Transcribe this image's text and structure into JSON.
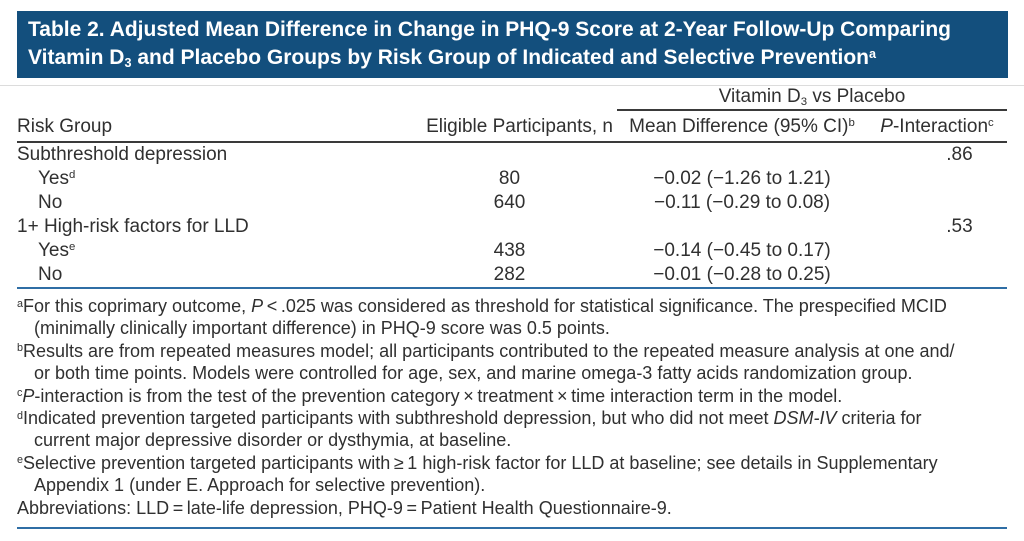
{
  "banner": {
    "line1": [
      {
        "t": "Table 2. Adjusted Mean Difference in Change in PHQ-9 Score at 2-Year Follow-Up Comparing"
      }
    ],
    "line2": [
      {
        "t": "Vitamin D"
      },
      {
        "t": "3",
        "sub": true
      },
      {
        "t": " and Placebo Groups by Risk Group of Indicated and Selective Prevention"
      },
      {
        "t": "a",
        "sup": true
      }
    ]
  },
  "table": {
    "span_header": [
      {
        "t": "Vitamin D"
      },
      {
        "t": "3",
        "sub": true
      },
      {
        "t": " vs Placebo"
      }
    ],
    "columns": {
      "risk_group": "Risk Group",
      "eligible": "Eligible Participants, n",
      "mean_diff": [
        {
          "t": "Mean Difference (95% CI)"
        },
        {
          "t": "b",
          "sup": true
        }
      ],
      "p_interaction": [
        {
          "t": "P",
          "i": true
        },
        {
          "t": "-Interaction"
        },
        {
          "t": "c",
          "sup": true
        }
      ]
    },
    "rows": [
      {
        "label": "Subthreshold depression",
        "indent": false,
        "sup": "",
        "n": "",
        "mean_diff": "",
        "p": ".86"
      },
      {
        "label": "Yes",
        "indent": true,
        "sup": "d",
        "n": "80",
        "mean_diff": "−0.02 (−1.26 to 1.21)",
        "p": ""
      },
      {
        "label": "No",
        "indent": true,
        "sup": "",
        "n": "640",
        "mean_diff": "−0.11 (−0.29 to 0.08)",
        "p": ""
      },
      {
        "label": "1+ High-risk factors for LLD",
        "indent": false,
        "sup": "",
        "n": "",
        "mean_diff": "",
        "p": ".53"
      },
      {
        "label": "Yes",
        "indent": true,
        "sup": "e",
        "n": "438",
        "mean_diff": "−0.14 (−0.45 to 0.17)",
        "p": ""
      },
      {
        "label": "No",
        "indent": true,
        "sup": "",
        "n": "282",
        "mean_diff": "−0.01 (−0.28 to 0.25)",
        "p": ""
      }
    ]
  },
  "footnotes": {
    "items": [
      {
        "sup": "a",
        "lines": [
          [
            {
              "t": "For this coprimary outcome, "
            },
            {
              "t": "P",
              "i": true
            },
            {
              "t": " < .025 was considered as threshold for statistical significance. The prespecified MCID"
            }
          ],
          [
            {
              "t": "(minimally clinically important difference) in PHQ-9 score was 0.5 points."
            }
          ]
        ]
      },
      {
        "sup": "b",
        "lines": [
          [
            {
              "t": "Results are from repeated measures model; all participants contributed to the repeated measure analysis at one and/"
            }
          ],
          [
            {
              "t": "or both time points. Models were controlled for age, sex, and marine omega-3 fatty acids randomization group."
            }
          ]
        ]
      },
      {
        "sup": "c",
        "lines": [
          [
            {
              "t": "P",
              "i": true
            },
            {
              "t": "-interaction is from the test of the prevention category × treatment × time interaction term in the model."
            }
          ]
        ]
      },
      {
        "sup": "d",
        "lines": [
          [
            {
              "t": "Indicated prevention targeted participants with subthreshold depression, but who did not meet "
            },
            {
              "t": "DSM-IV",
              "i": true
            },
            {
              "t": " criteria for"
            }
          ],
          [
            {
              "t": "current major depressive disorder or dysthymia, at baseline."
            }
          ]
        ]
      },
      {
        "sup": "e",
        "lines": [
          [
            {
              "t": "Selective prevention targeted participants with ≥ 1 high-risk factor for LLD at baseline; see details in Supplementary"
            }
          ],
          [
            {
              "t": "Appendix 1 (under E. Approach for selective prevention)."
            }
          ]
        ]
      }
    ],
    "abbreviations": [
      {
        "t": "Abbreviations: LLD = late-life depression, PHQ-9 = Patient Health Questionnaire-9."
      }
    ]
  },
  "colors": {
    "banner_bg": "#134f7d",
    "banner_text": "#ffffff",
    "rule_dark": "#3a3a3a",
    "rule_blue": "#2f6ea5",
    "body_text": "#303030"
  }
}
